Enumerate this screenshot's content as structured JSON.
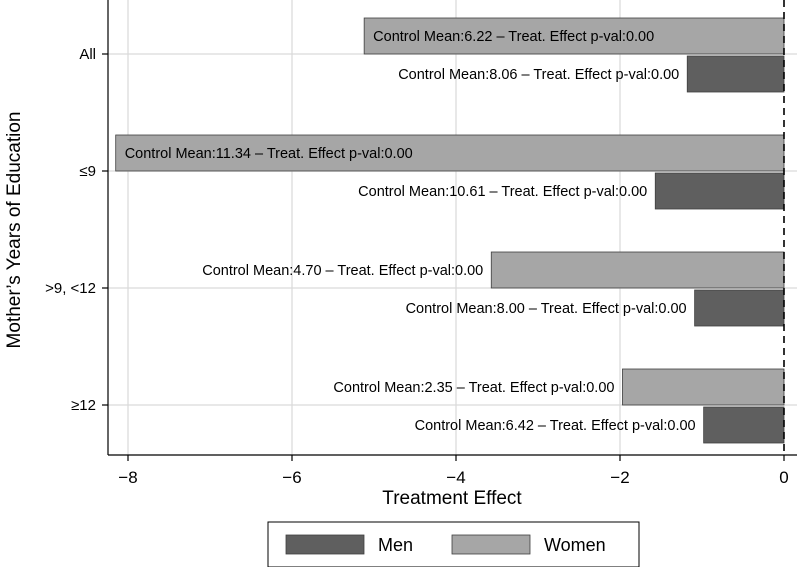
{
  "chart_data": {
    "type": "bar",
    "orientation": "horizontal",
    "title": "",
    "xlabel": "Treatment Effect",
    "ylabel": "Mother’s Years of Education",
    "xlim": [
      -8.2,
      0.1
    ],
    "xticks": [
      -8,
      -6,
      -4,
      -2,
      0
    ],
    "xtick_labels": [
      "−8",
      "−6",
      "−4",
      "−2",
      "0"
    ],
    "categories": [
      "All",
      "≤9",
      ">9, <12",
      "≥12"
    ],
    "series": [
      {
        "name": "Women",
        "color": "#a6a6a6",
        "values": [
          -5.12,
          -8.15,
          -3.57,
          -1.97
        ],
        "labels": [
          "Control Mean:6.22 – Treat. Effect p-val:0.00",
          "Control Mean:11.34 – Treat. Effect p-val:0.00",
          "Control Mean:4.70 – Treat. Effect p-val:0.00",
          "Control Mean:2.35 – Treat. Effect p-val:0.00"
        ]
      },
      {
        "name": "Men",
        "color": "#5f5f5f",
        "values": [
          -1.18,
          -1.57,
          -1.09,
          -0.98
        ],
        "labels": [
          "Control Mean:8.06 – Treat. Effect p-val:0.00",
          "Control Mean:10.61 – Treat. Effect p-val:0.00",
          "Control Mean:8.00 – Treat. Effect p-val:0.00",
          "Control Mean:6.42 – Treat. Effect p-val:0.00"
        ]
      }
    ],
    "legend": {
      "position": "bottom",
      "order": [
        "Men",
        "Women"
      ],
      "items": [
        {
          "label": "Men",
          "color": "#5f5f5f"
        },
        {
          "label": "Women",
          "color": "#a6a6a6"
        }
      ]
    },
    "grid": true,
    "reference_line": {
      "x": 0,
      "style": "dashed"
    }
  }
}
